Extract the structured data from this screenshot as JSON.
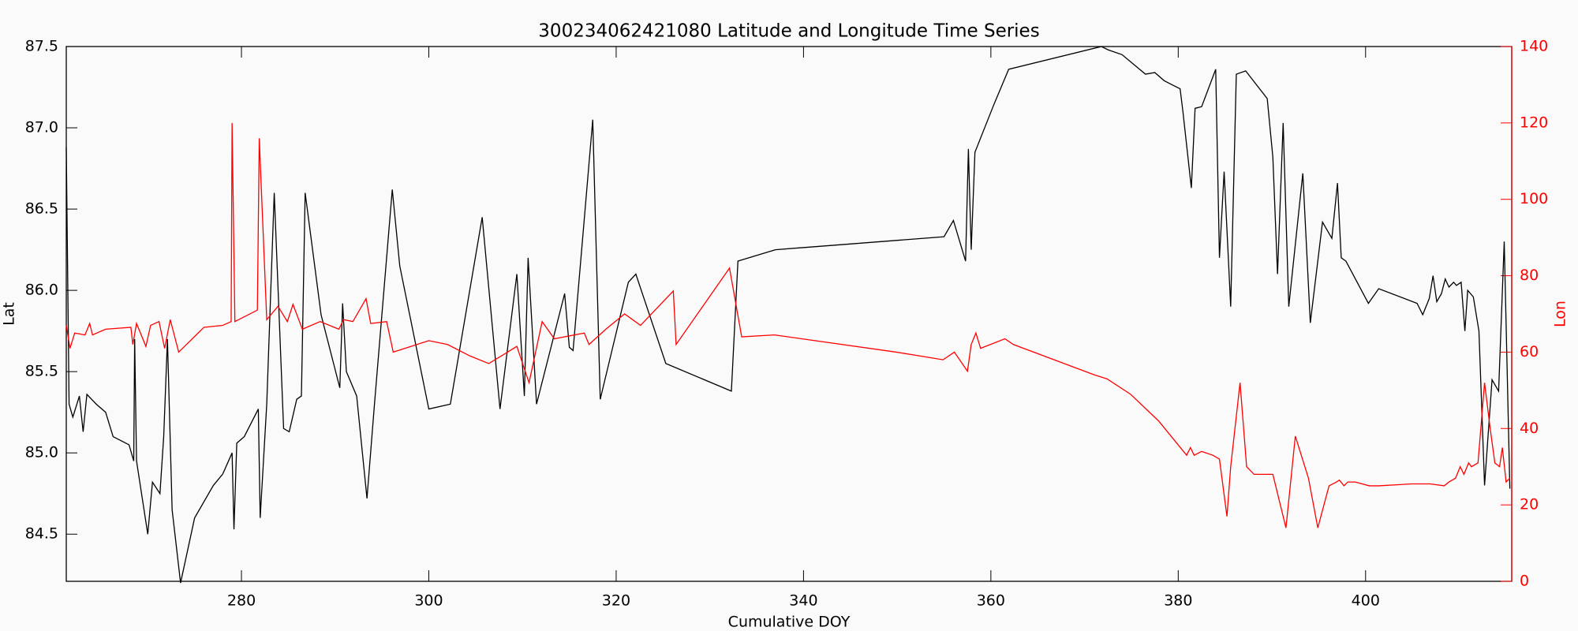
{
  "chart_data": {
    "type": "line",
    "title": "300234062421080 Latitude and Longitude Time Series",
    "xlabel": "Cumulative DOY",
    "ylabel": "Lat",
    "y2label": "Lon",
    "xlim": [
      261.3,
      415.6
    ],
    "xticks": [
      280,
      300,
      320,
      340,
      360,
      380,
      400
    ],
    "ylim": [
      84.21,
      87.5
    ],
    "yticks": [
      84.5,
      {
        "value": 85.0,
        "label": "85.0"
      },
      85.5,
      {
        "value": 86.0,
        "label": "86.0"
      },
      86.5,
      {
        "value": 87.0,
        "label": "87.0"
      },
      87.5
    ],
    "y2lim": [
      0,
      140
    ],
    "y2ticks": [
      0,
      20,
      40,
      60,
      80,
      100,
      120,
      140
    ],
    "axis_color": "#000000",
    "y2_color": "#ff0000",
    "series": [
      {
        "color": "#000000",
        "x": [
          261.3,
          261.6,
          262,
          262.7,
          263.1,
          263.5,
          264.5,
          265.5,
          266.3,
          268,
          268.5,
          268.6,
          268.8,
          270,
          270.5,
          271.3,
          271.7,
          272.1,
          272.6,
          273.5,
          275,
          277,
          278,
          279,
          279.2,
          279.5,
          280.3,
          281.8,
          282,
          282.7,
          283.5,
          284.5,
          285.1,
          285.9,
          286.4,
          286.8,
          288.5,
          290.5,
          290.8,
          291.2,
          292.3,
          293.4,
          294.2,
          296.1,
          296.9,
          300,
          302.3,
          305.7,
          307.6,
          309.4,
          310.2,
          310.6,
          311.5,
          314.5,
          315.0,
          315.4,
          317.5,
          318.3,
          321.3,
          322.1,
          325.3,
          332.3,
          333,
          337,
          355,
          356,
          357.3,
          357.6,
          357.9,
          358.3,
          360.3,
          361.9,
          371.8,
          372.5,
          374,
          376.5,
          377.5,
          378.5,
          379.5,
          380.2,
          380.5,
          381.4,
          381.8,
          382.5,
          384,
          384.4,
          384.9,
          385.6,
          386.2,
          387.2,
          389.5,
          390.1,
          390.6,
          391.2,
          391.8,
          393.3,
          394.1,
          395.4,
          396.4,
          397,
          397.4,
          397.9,
          400.3,
          401.4,
          405.5,
          406.1,
          406.8,
          407.2,
          407.6,
          408.1,
          408.5,
          408.9,
          409.4,
          409.7,
          410.2,
          410.6,
          410.9,
          411.5,
          412.1,
          412.7,
          413.5,
          414.2,
          414.8,
          415.4
        ],
        "values": [
          86.88,
          85.3,
          85.22,
          85.35,
          85.13,
          85.36,
          85.3,
          85.25,
          85.1,
          85.05,
          84.95,
          85.7,
          84.95,
          84.5,
          84.82,
          84.75,
          85.1,
          85.7,
          84.65,
          84.2,
          84.6,
          84.8,
          84.87,
          85.0,
          84.53,
          85.06,
          85.1,
          85.27,
          84.6,
          85.3,
          86.6,
          85.15,
          85.13,
          85.33,
          85.35,
          86.6,
          85.85,
          85.4,
          85.92,
          85.5,
          85.35,
          84.72,
          85.3,
          86.62,
          86.15,
          85.27,
          85.3,
          86.45,
          85.27,
          86.1,
          85.35,
          86.2,
          85.3,
          85.98,
          85.65,
          85.63,
          87.05,
          85.33,
          86.05,
          86.1,
          85.55,
          85.38,
          86.18,
          86.25,
          86.33,
          86.43,
          86.18,
          86.87,
          86.25,
          86.85,
          87.14,
          87.36,
          87.5,
          87.48,
          87.45,
          87.33,
          87.34,
          87.29,
          87.26,
          87.24,
          87.1,
          86.63,
          87.12,
          87.13,
          87.36,
          86.2,
          86.73,
          85.9,
          87.33,
          87.35,
          87.18,
          86.82,
          86.1,
          87.03,
          85.9,
          86.72,
          85.8,
          86.42,
          86.32,
          86.66,
          86.2,
          86.18,
          85.92,
          86.01,
          85.92,
          85.85,
          85.95,
          86.09,
          85.93,
          85.98,
          86.07,
          86.02,
          86.05,
          86.03,
          86.05,
          85.75,
          86.0,
          85.96,
          85.75,
          84.8,
          85.45,
          85.38,
          86.3,
          84.78
        ]
      },
      {
        "color": "#ff0000",
        "axis": "y2",
        "x": [
          261.3,
          261.7,
          262.2,
          263.3,
          263.8,
          264.1,
          265.5,
          268.2,
          268.4,
          268.8,
          269.8,
          270.3,
          271.2,
          271.8,
          272.4,
          273.3,
          276,
          278,
          278.9,
          279.0,
          279.3,
          281.7,
          281.9,
          282.7,
          283.9,
          284.9,
          285.5,
          286.5,
          288.4,
          290.4,
          290.9,
          291.9,
          293.3,
          293.8,
          295.5,
          296.2,
          300,
          302,
          304.4,
          306.4,
          309.4,
          310.7,
          312.1,
          313.4,
          316.6,
          317.1,
          318.9,
          320.9,
          322.6,
          326.1,
          326.4,
          332.1,
          333.4,
          336.9,
          349.9,
          354.9,
          356.1,
          357.5,
          357.9,
          358.4,
          358.9,
          361.5,
          362.4,
          371.1,
          372.4,
          374.9,
          377.9,
          379.9,
          380.9,
          381.3,
          381.7,
          382.5,
          383.7,
          384.4,
          385.2,
          385.6,
          386.6,
          387.3,
          388.1,
          389.4,
          390.1,
          391.5,
          392.5,
          393.9,
          394.9,
          396.1,
          396.9,
          397.2,
          397.7,
          398.1,
          398.9,
          400.4,
          401.4,
          404.9,
          406.9,
          408.4,
          408.9,
          409.6,
          410.1,
          410.5,
          411,
          411.3,
          412,
          412.7,
          413.3,
          413.8,
          414.3,
          414.6,
          415,
          415.4
        ],
        "values": [
          67,
          61,
          65,
          64.5,
          67.5,
          64.5,
          66,
          66.5,
          62,
          67.5,
          61.5,
          67,
          68,
          61,
          68.5,
          60,
          66.5,
          67,
          68,
          120,
          68,
          71,
          116,
          68.5,
          72,
          68,
          72.5,
          66,
          68,
          66,
          68.5,
          68,
          74,
          67.5,
          68,
          60,
          63,
          62,
          59,
          57,
          61.5,
          52,
          68,
          63.5,
          65,
          62,
          66,
          70,
          67,
          76,
          62,
          82,
          64,
          64.5,
          60,
          58,
          60,
          55,
          62,
          65,
          61,
          63.5,
          62,
          54,
          53,
          49,
          42,
          36,
          33,
          35,
          33,
          34,
          33,
          32,
          17,
          30,
          52,
          30,
          28,
          28,
          28,
          14,
          38,
          27,
          14,
          25,
          26,
          26.5,
          25,
          26,
          26,
          25,
          25,
          25.5,
          25.5,
          25,
          26,
          27,
          30,
          28,
          31,
          30,
          31,
          52,
          40,
          31,
          30,
          35,
          26,
          27
        ]
      }
    ]
  }
}
